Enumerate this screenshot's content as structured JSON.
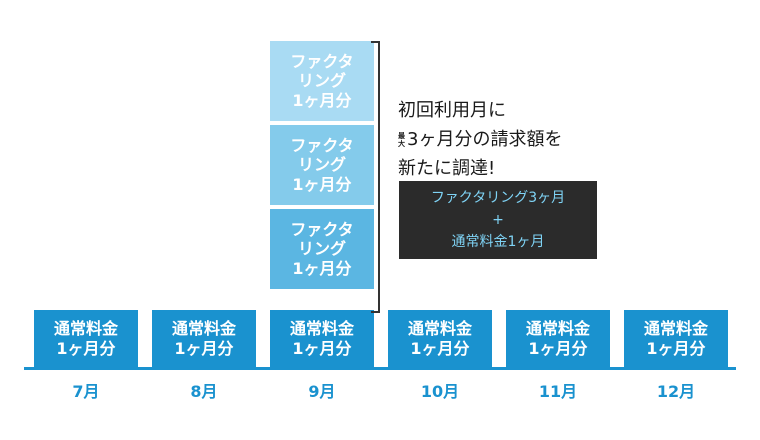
{
  "stack_blocks": [
    {
      "line1": "ファクタ",
      "line2": "リング",
      "line3": "1ヶ月分"
    },
    {
      "line1": "ファクタ",
      "line2": "リング",
      "line3": "1ヶ月分"
    },
    {
      "line1": "ファクタ",
      "line2": "リング",
      "line3": "1ヶ月分"
    }
  ],
  "base_blocks": [
    {
      "line1": "通常料金",
      "line2": "1ヶ月分"
    },
    {
      "line1": "通常料金",
      "line2": "1ヶ月分"
    },
    {
      "line1": "通常料金",
      "line2": "1ヶ月分"
    },
    {
      "line1": "通常料金",
      "line2": "1ヶ月分"
    },
    {
      "line1": "通常料金",
      "line2": "1ヶ月分"
    },
    {
      "line1": "通常料金",
      "line2": "1ヶ月分"
    }
  ],
  "months": [
    "7月",
    "8月",
    "9月",
    "10月",
    "11月",
    "12月"
  ],
  "caption": {
    "line1": "初回利用月に",
    "small_top": "最",
    "small_bottom": "大",
    "line2": "3ヶ月分の請求額を",
    "line3": "新たに調達!"
  },
  "summary_box": {
    "line1": "ファクタリング3ヶ月",
    "line2": "+",
    "line3": "通常料金1ヶ月"
  },
  "colors": {
    "base_block": "#1a92cf",
    "stack_top": "#a9dbf3",
    "stack_middle": "#84cbeb",
    "stack_bottom": "#5bb6e2",
    "summary_box_bg": "#2b2b2b",
    "summary_box_text": "#7fd3f5"
  }
}
